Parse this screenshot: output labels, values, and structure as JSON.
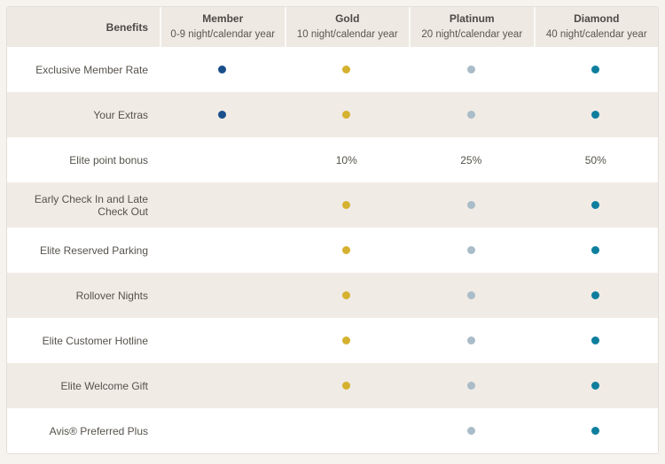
{
  "table": {
    "header": {
      "benefits_label": "Benefits",
      "tiers": [
        {
          "name": "Member",
          "sub": "0-9 night/calendar year"
        },
        {
          "name": "Gold",
          "sub": "10 night/calendar year"
        },
        {
          "name": "Platinum",
          "sub": "20 night/calendar year"
        },
        {
          "name": "Diamond",
          "sub": "40 night/calendar year"
        }
      ]
    },
    "rows": [
      {
        "label": "Exclusive Member Rate",
        "member": "dot",
        "gold": "dot",
        "platinum": "dot",
        "diamond": "dot"
      },
      {
        "label": "Your Extras",
        "member": "dot",
        "gold": "dot",
        "platinum": "dot",
        "diamond": "dot"
      },
      {
        "label": "Elite point bonus",
        "member": "",
        "gold": "10%",
        "platinum": "25%",
        "diamond": "50%"
      },
      {
        "label": "Early Check In and Late Check Out",
        "member": "",
        "gold": "dot",
        "platinum": "dot",
        "diamond": "dot"
      },
      {
        "label": "Elite Reserved Parking",
        "member": "",
        "gold": "dot",
        "platinum": "dot",
        "diamond": "dot"
      },
      {
        "label": "Rollover Nights",
        "member": "",
        "gold": "dot",
        "platinum": "dot",
        "diamond": "dot"
      },
      {
        "label": "Elite Customer Hotline",
        "member": "",
        "gold": "dot",
        "platinum": "dot",
        "diamond": "dot"
      },
      {
        "label": "Elite Welcome Gift",
        "member": "",
        "gold": "dot",
        "platinum": "dot",
        "diamond": "dot"
      },
      {
        "label": "Avis® Preferred Plus",
        "member": "",
        "gold": "",
        "platinum": "dot",
        "diamond": "dot"
      }
    ]
  },
  "colors": {
    "member_dot": "#1a4f8c",
    "gold_dot": "#d5b130",
    "platinum_dot": "#a9bcc8",
    "diamond_dot": "#0d7e9d",
    "header_bg": "#eee9e2",
    "row_alt_bg": "#f0ebe5",
    "border": "#e2ded7",
    "text": "#56524c"
  }
}
